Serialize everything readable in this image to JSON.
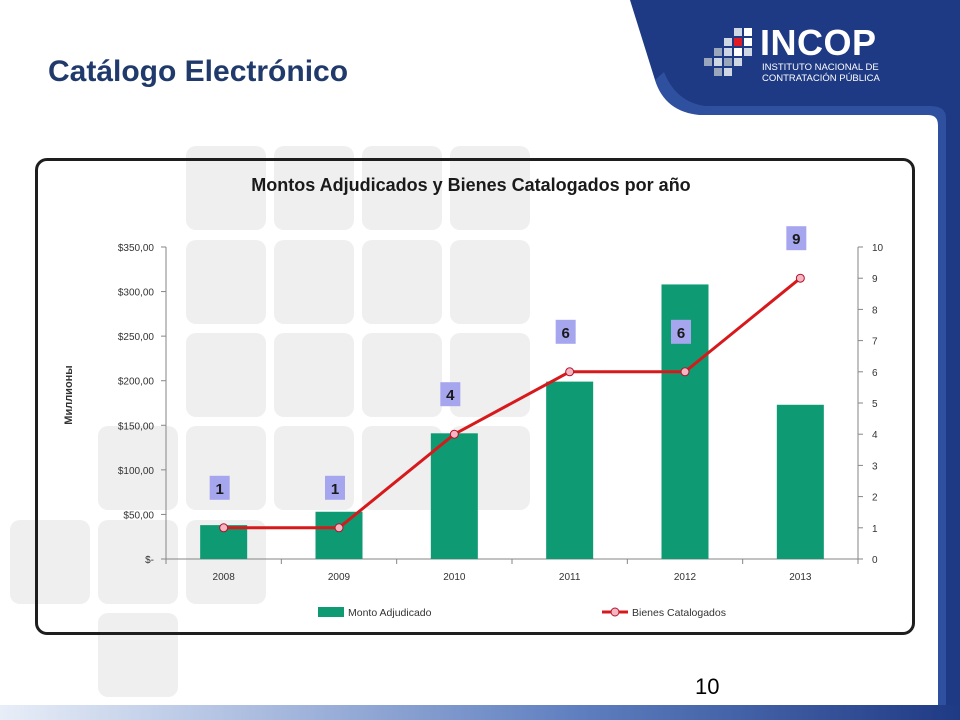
{
  "slide": {
    "title": "Catálogo Electrónico",
    "page_number": "10"
  },
  "logo": {
    "name": "INCOP",
    "line1": "INSTITUTO NACIONAL DE",
    "line2": "CONTRATACIÓN PÚBLICA"
  },
  "colors": {
    "title": "#1F3A6B",
    "bar": "#0E9A72",
    "line": "#D7191C",
    "marker_fill": "#F4B6C2",
    "label_bg": "#A6A6EE",
    "banner": "#1F3A84"
  },
  "chart_data": {
    "type": "bar",
    "title": "Montos Adjudicados y Bienes Catalogados por año",
    "ylabel": "Миллионы",
    "categories": [
      "2008",
      "2009",
      "2010",
      "2011",
      "2012",
      "2013"
    ],
    "ylim": [
      0,
      350
    ],
    "y_ticks": [
      "$-",
      "$50,00",
      "$100,00",
      "$150,00",
      "$200,00",
      "$250,00",
      "$300,00",
      "$350,00"
    ],
    "y2lim": [
      0,
      10
    ],
    "y2_ticks": [
      "0",
      "1",
      "2",
      "3",
      "4",
      "5",
      "6",
      "7",
      "8",
      "9",
      "10"
    ],
    "series": [
      {
        "name": "Monto Adjudicado",
        "type": "bar",
        "axis": "left",
        "values": [
          38,
          53,
          141,
          199,
          308,
          173
        ]
      },
      {
        "name": "Bienes Catalogados",
        "type": "line",
        "axis": "right",
        "values": [
          1,
          1,
          4,
          6,
          6,
          9
        ],
        "labels": [
          "1",
          "1",
          "4",
          "6",
          "6",
          "9"
        ]
      }
    ],
    "legend": "bottom",
    "grid": false
  }
}
